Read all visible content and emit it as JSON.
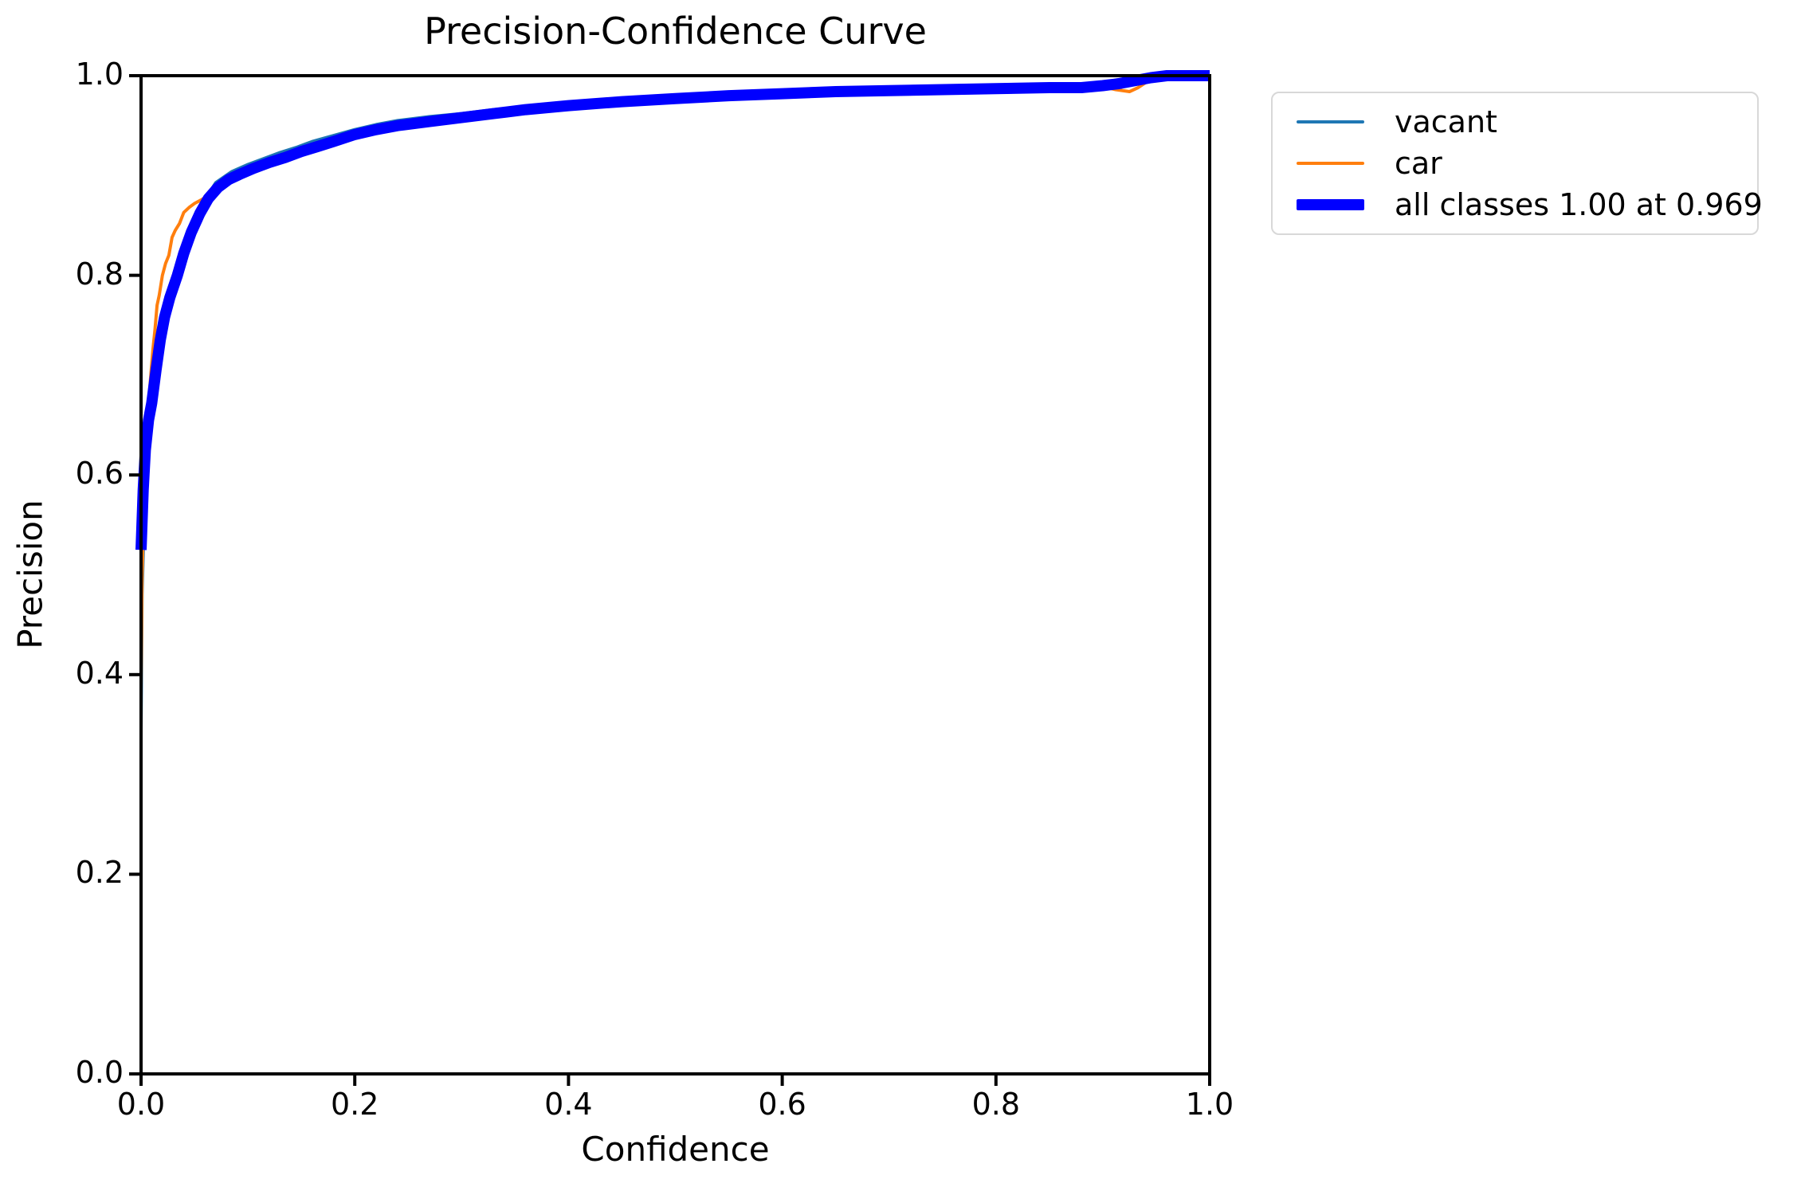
{
  "title": "Precision-Confidence Curve",
  "x_axis": {
    "label": "Confidence",
    "ticks": [
      "0.0",
      "0.2",
      "0.4",
      "0.6",
      "0.8",
      "1.0"
    ],
    "tick_values": [
      0.0,
      0.2,
      0.4,
      0.6,
      0.8,
      1.0
    ]
  },
  "y_axis": {
    "label": "Precision",
    "ticks": [
      "0.0",
      "0.2",
      "0.4",
      "0.6",
      "0.8",
      "1.0"
    ],
    "tick_values": [
      0.0,
      0.2,
      0.4,
      0.6,
      0.8,
      1.0
    ]
  },
  "colors": {
    "vacant": "#1f77b4",
    "car": "#ff7f0e",
    "all_classes": "#0000ff",
    "axis": "#000000",
    "legend_border": "#d8d8d8",
    "background": "#ffffff"
  },
  "legend": {
    "items": [
      {
        "label": "vacant",
        "color": "#1f77b4",
        "thickness": 4
      },
      {
        "label": "car",
        "color": "#ff7f0e",
        "thickness": 4
      },
      {
        "label": "all classes 1.00 at 0.969",
        "color": "#0000ff",
        "thickness": 14
      }
    ]
  },
  "chart_data": {
    "type": "line",
    "title": "Precision-Confidence Curve",
    "xlabel": "Confidence",
    "ylabel": "Precision",
    "xlim": [
      0.0,
      1.0
    ],
    "ylim": [
      0.0,
      1.0
    ],
    "grid": false,
    "legend_position": "outside upper right",
    "summary": "all classes reach precision 1.00 at confidence 0.969",
    "series": [
      {
        "name": "vacant",
        "color": "#1f77b4",
        "width": 4,
        "points": [
          [
            0.0,
            0.345
          ],
          [
            0.001,
            0.48
          ],
          [
            0.003,
            0.56
          ],
          [
            0.006,
            0.615
          ],
          [
            0.01,
            0.66
          ],
          [
            0.014,
            0.7
          ],
          [
            0.019,
            0.742
          ],
          [
            0.026,
            0.778
          ],
          [
            0.034,
            0.806
          ],
          [
            0.045,
            0.842
          ],
          [
            0.056,
            0.87
          ],
          [
            0.07,
            0.893
          ],
          [
            0.085,
            0.904
          ],
          [
            0.1,
            0.911
          ],
          [
            0.115,
            0.917
          ],
          [
            0.13,
            0.923
          ],
          [
            0.145,
            0.928
          ],
          [
            0.16,
            0.934
          ],
          [
            0.18,
            0.94
          ],
          [
            0.2,
            0.946
          ],
          [
            0.22,
            0.951
          ],
          [
            0.24,
            0.955
          ],
          [
            0.27,
            0.959
          ],
          [
            0.3,
            0.962
          ],
          [
            0.33,
            0.966
          ],
          [
            0.36,
            0.969
          ],
          [
            0.4,
            0.972
          ],
          [
            0.45,
            0.976
          ],
          [
            0.5,
            0.979
          ],
          [
            0.55,
            0.982
          ],
          [
            0.6,
            0.984
          ],
          [
            0.65,
            0.985
          ],
          [
            0.7,
            0.986
          ],
          [
            0.75,
            0.987
          ],
          [
            0.8,
            0.988
          ],
          [
            0.85,
            0.989
          ],
          [
            0.9,
            0.99
          ],
          [
            0.92,
            0.993
          ],
          [
            0.94,
            0.997
          ],
          [
            0.96,
            1.0
          ],
          [
            1.0,
            1.0
          ]
        ]
      },
      {
        "name": "car",
        "color": "#ff7f0e",
        "width": 4,
        "points": [
          [
            0.0,
            0.386
          ],
          [
            0.001,
            0.5
          ],
          [
            0.003,
            0.58
          ],
          [
            0.005,
            0.635
          ],
          [
            0.008,
            0.685
          ],
          [
            0.011,
            0.725
          ],
          [
            0.013,
            0.745
          ],
          [
            0.015,
            0.77
          ],
          [
            0.017,
            0.78
          ],
          [
            0.02,
            0.8
          ],
          [
            0.023,
            0.812
          ],
          [
            0.026,
            0.82
          ],
          [
            0.029,
            0.838
          ],
          [
            0.032,
            0.845
          ],
          [
            0.036,
            0.852
          ],
          [
            0.04,
            0.863
          ],
          [
            0.045,
            0.868
          ],
          [
            0.05,
            0.872
          ],
          [
            0.057,
            0.876
          ],
          [
            0.065,
            0.882
          ],
          [
            0.075,
            0.888
          ],
          [
            0.085,
            0.894
          ],
          [
            0.1,
            0.901
          ],
          [
            0.115,
            0.908
          ],
          [
            0.13,
            0.914
          ],
          [
            0.145,
            0.92
          ],
          [
            0.16,
            0.926
          ],
          [
            0.18,
            0.932
          ],
          [
            0.2,
            0.938
          ],
          [
            0.22,
            0.943
          ],
          [
            0.24,
            0.947
          ],
          [
            0.27,
            0.952
          ],
          [
            0.3,
            0.956
          ],
          [
            0.33,
            0.96
          ],
          [
            0.36,
            0.964
          ],
          [
            0.4,
            0.968
          ],
          [
            0.43,
            0.97
          ],
          [
            0.45,
            0.973
          ],
          [
            0.5,
            0.976
          ],
          [
            0.55,
            0.979
          ],
          [
            0.6,
            0.982
          ],
          [
            0.64,
            0.984
          ],
          [
            0.68,
            0.987
          ],
          [
            0.72,
            0.987
          ],
          [
            0.75,
            0.986
          ],
          [
            0.8,
            0.987
          ],
          [
            0.85,
            0.988
          ],
          [
            0.88,
            0.989
          ],
          [
            0.9,
            0.989
          ],
          [
            0.912,
            0.986
          ],
          [
            0.925,
            0.984
          ],
          [
            0.933,
            0.988
          ],
          [
            0.94,
            0.993
          ],
          [
            0.95,
            1.0
          ],
          [
            1.0,
            1.0
          ]
        ]
      },
      {
        "name": "all classes",
        "annotation": "1.00 at 0.969",
        "color": "#0000ff",
        "width": 14,
        "points": [
          [
            0.0,
            0.525
          ],
          [
            0.002,
            0.585
          ],
          [
            0.004,
            0.625
          ],
          [
            0.007,
            0.655
          ],
          [
            0.01,
            0.672
          ],
          [
            0.014,
            0.705
          ],
          [
            0.018,
            0.735
          ],
          [
            0.022,
            0.758
          ],
          [
            0.027,
            0.778
          ],
          [
            0.034,
            0.8
          ],
          [
            0.04,
            0.822
          ],
          [
            0.047,
            0.843
          ],
          [
            0.055,
            0.862
          ],
          [
            0.063,
            0.877
          ],
          [
            0.072,
            0.888
          ],
          [
            0.082,
            0.896
          ],
          [
            0.092,
            0.901
          ],
          [
            0.105,
            0.907
          ],
          [
            0.12,
            0.913
          ],
          [
            0.135,
            0.918
          ],
          [
            0.15,
            0.924
          ],
          [
            0.165,
            0.929
          ],
          [
            0.18,
            0.934
          ],
          [
            0.2,
            0.941
          ],
          [
            0.22,
            0.946
          ],
          [
            0.24,
            0.95
          ],
          [
            0.27,
            0.954
          ],
          [
            0.3,
            0.958
          ],
          [
            0.33,
            0.962
          ],
          [
            0.36,
            0.966
          ],
          [
            0.4,
            0.97
          ],
          [
            0.45,
            0.974
          ],
          [
            0.5,
            0.977
          ],
          [
            0.55,
            0.98
          ],
          [
            0.6,
            0.982
          ],
          [
            0.65,
            0.984
          ],
          [
            0.7,
            0.985
          ],
          [
            0.75,
            0.986
          ],
          [
            0.8,
            0.987
          ],
          [
            0.85,
            0.988
          ],
          [
            0.88,
            0.988
          ],
          [
            0.9,
            0.99
          ],
          [
            0.915,
            0.992
          ],
          [
            0.93,
            0.995
          ],
          [
            0.945,
            0.998
          ],
          [
            0.96,
            1.0
          ],
          [
            0.969,
            1.0
          ],
          [
            1.0,
            1.0
          ]
        ]
      }
    ]
  }
}
